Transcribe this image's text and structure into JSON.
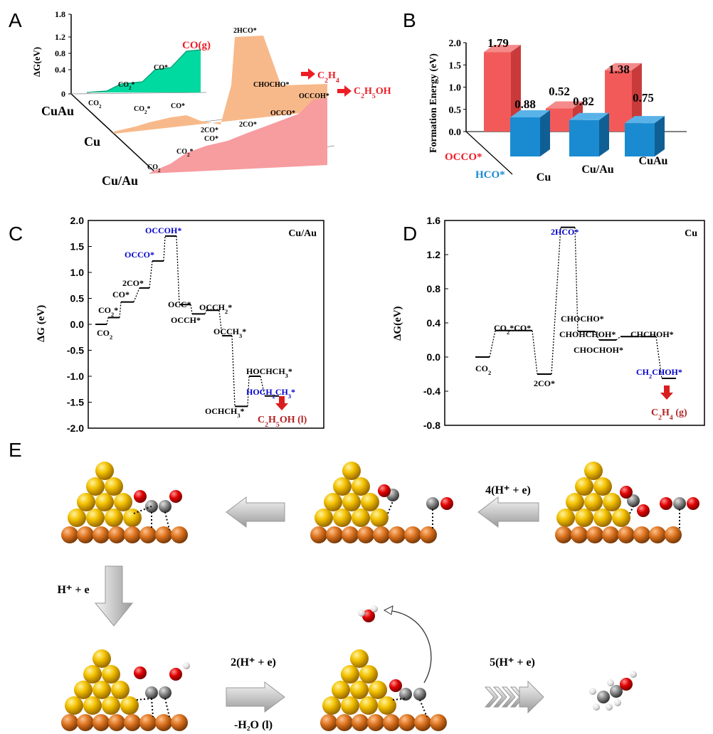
{
  "panel_labels": [
    "A",
    "B",
    "C",
    "D",
    "E"
  ],
  "colors": {
    "teal": "#00d9a0",
    "peach": "#f8b98a",
    "pink": "#f79c9f",
    "red": "#ee1c25",
    "blue": "#0000cc",
    "darkred": "#b22222",
    "bar_red": "#f35c5c",
    "bar_blue": "#1a8bd1",
    "gold": "#f5b800",
    "copper": "#d9701c",
    "oxygen": "#dd0000",
    "carbon": "#777777"
  },
  "chart_data": [
    {
      "panel": "A",
      "type": "area",
      "ylabel": "ΔG(eV)",
      "yticks": [
        "1.8",
        "1.2",
        "0.8",
        "0.4",
        "0"
      ],
      "ylim": [
        0,
        1.8
      ],
      "series": [
        {
          "name": "CuAu",
          "steps": [
            "CO2",
            "CO2*",
            "CO*",
            "CO(g)"
          ],
          "values": [
            0.0,
            0.3,
            0.65,
            0.9
          ],
          "product": "CO(g)"
        },
        {
          "name": "Cu",
          "steps": [
            "CO2",
            "CO2*",
            "CO*",
            "2CO*",
            "2HCO*",
            "CHOCHO*"
          ],
          "values": [
            0.0,
            0.3,
            0.3,
            -0.2,
            1.52,
            0.45
          ],
          "product": "C2H4"
        },
        {
          "name": "Cu/Au",
          "steps": [
            "CO2",
            "CO2*",
            "CO*",
            "2CO*",
            "OCCO*",
            "OCCOH*"
          ],
          "values": [
            0.0,
            0.15,
            0.45,
            0.75,
            1.25,
            1.7
          ],
          "product": "C2H5OH"
        }
      ],
      "labels": {
        "co2": "CO2",
        "co2s": "CO2*",
        "cos": "CO*",
        "cog": "CO(g)",
        "two_co_top": "2CO*",
        "two_co_bottom": "CO*",
        "two_hco": "2HCO*",
        "chocho": "CHOCHO*",
        "occo": "OCCO*",
        "occoh": "OCCOH*",
        "c2h4": "C2H4",
        "c2h5oh": "C2H5OH",
        "axis_cuau": "CuAu",
        "axis_cu": "Cu",
        "axis_cuau2": "Cu/Au"
      }
    },
    {
      "panel": "B",
      "type": "bar",
      "ylabel": "Formation Energy (eV)",
      "yticks": [
        "2.0",
        "1.5",
        "1.0",
        "0.5",
        "0.0"
      ],
      "ylim": [
        0,
        2.0
      ],
      "categories": [
        "Cu",
        "Cu/Au",
        "CuAu"
      ],
      "series": [
        {
          "name": "OCCO*",
          "values": [
            1.79,
            0.52,
            1.38
          ]
        },
        {
          "name": "HCO*",
          "values": [
            0.88,
            0.82,
            0.75
          ]
        }
      ],
      "value_labels": [
        "1.79",
        "0.88",
        "0.52",
        "0.82",
        "1.38",
        "0.75"
      ]
    },
    {
      "panel": "C",
      "type": "line",
      "title": "Cu/Au",
      "ylabel": "ΔG (eV)",
      "ylim": [
        -2.0,
        2.0
      ],
      "yticks": [
        "2.0",
        "1.5",
        "1.0",
        "0.5",
        "0.0",
        "-0.5",
        "-1.0",
        "-1.5",
        "-2.0"
      ],
      "steps": [
        "CO2",
        "CO2*",
        "CO*",
        "2CO*",
        "OCCO*",
        "OCCOH*",
        "OCC*",
        "OCCH*",
        "OCCH2*",
        "OCCH3*",
        "OCHCH3*",
        "HOCHCH3*",
        "HOCH2CH3*"
      ],
      "values": [
        0.0,
        0.13,
        0.43,
        0.7,
        1.22,
        1.7,
        0.38,
        0.2,
        0.27,
        -0.22,
        -1.58,
        -1.0,
        -1.38
      ],
      "product": "C2H5OH (l)"
    },
    {
      "panel": "D",
      "type": "line",
      "title": "Cu",
      "ylabel": "ΔG(eV)",
      "ylim": [
        -0.8,
        1.6
      ],
      "yticks": [
        "1.6",
        "1.2",
        "0.8",
        "0.4",
        "0.0",
        "-0.4",
        "-0.8"
      ],
      "steps": [
        "CO2",
        "CO2*CO*",
        "2CO*",
        "2HCO*",
        "CHOCHO*",
        "CHOHCHOH*",
        "CHOCHOH*",
        "CHCHOH*",
        "CH2CHOH*"
      ],
      "values": [
        0.0,
        0.31,
        -0.2,
        1.52,
        0.3,
        0.2,
        0.24,
        0.24,
        -0.25
      ],
      "product": "C2H4 (g)"
    }
  ],
  "panel_e": {
    "labels": {
      "step1": "4(H⁺ + e)",
      "step2": "H⁺ + e",
      "step3": "2(H⁺ + e)",
      "step3b": "-H₂O (l)",
      "step4": "5(H⁺ + e)"
    }
  }
}
